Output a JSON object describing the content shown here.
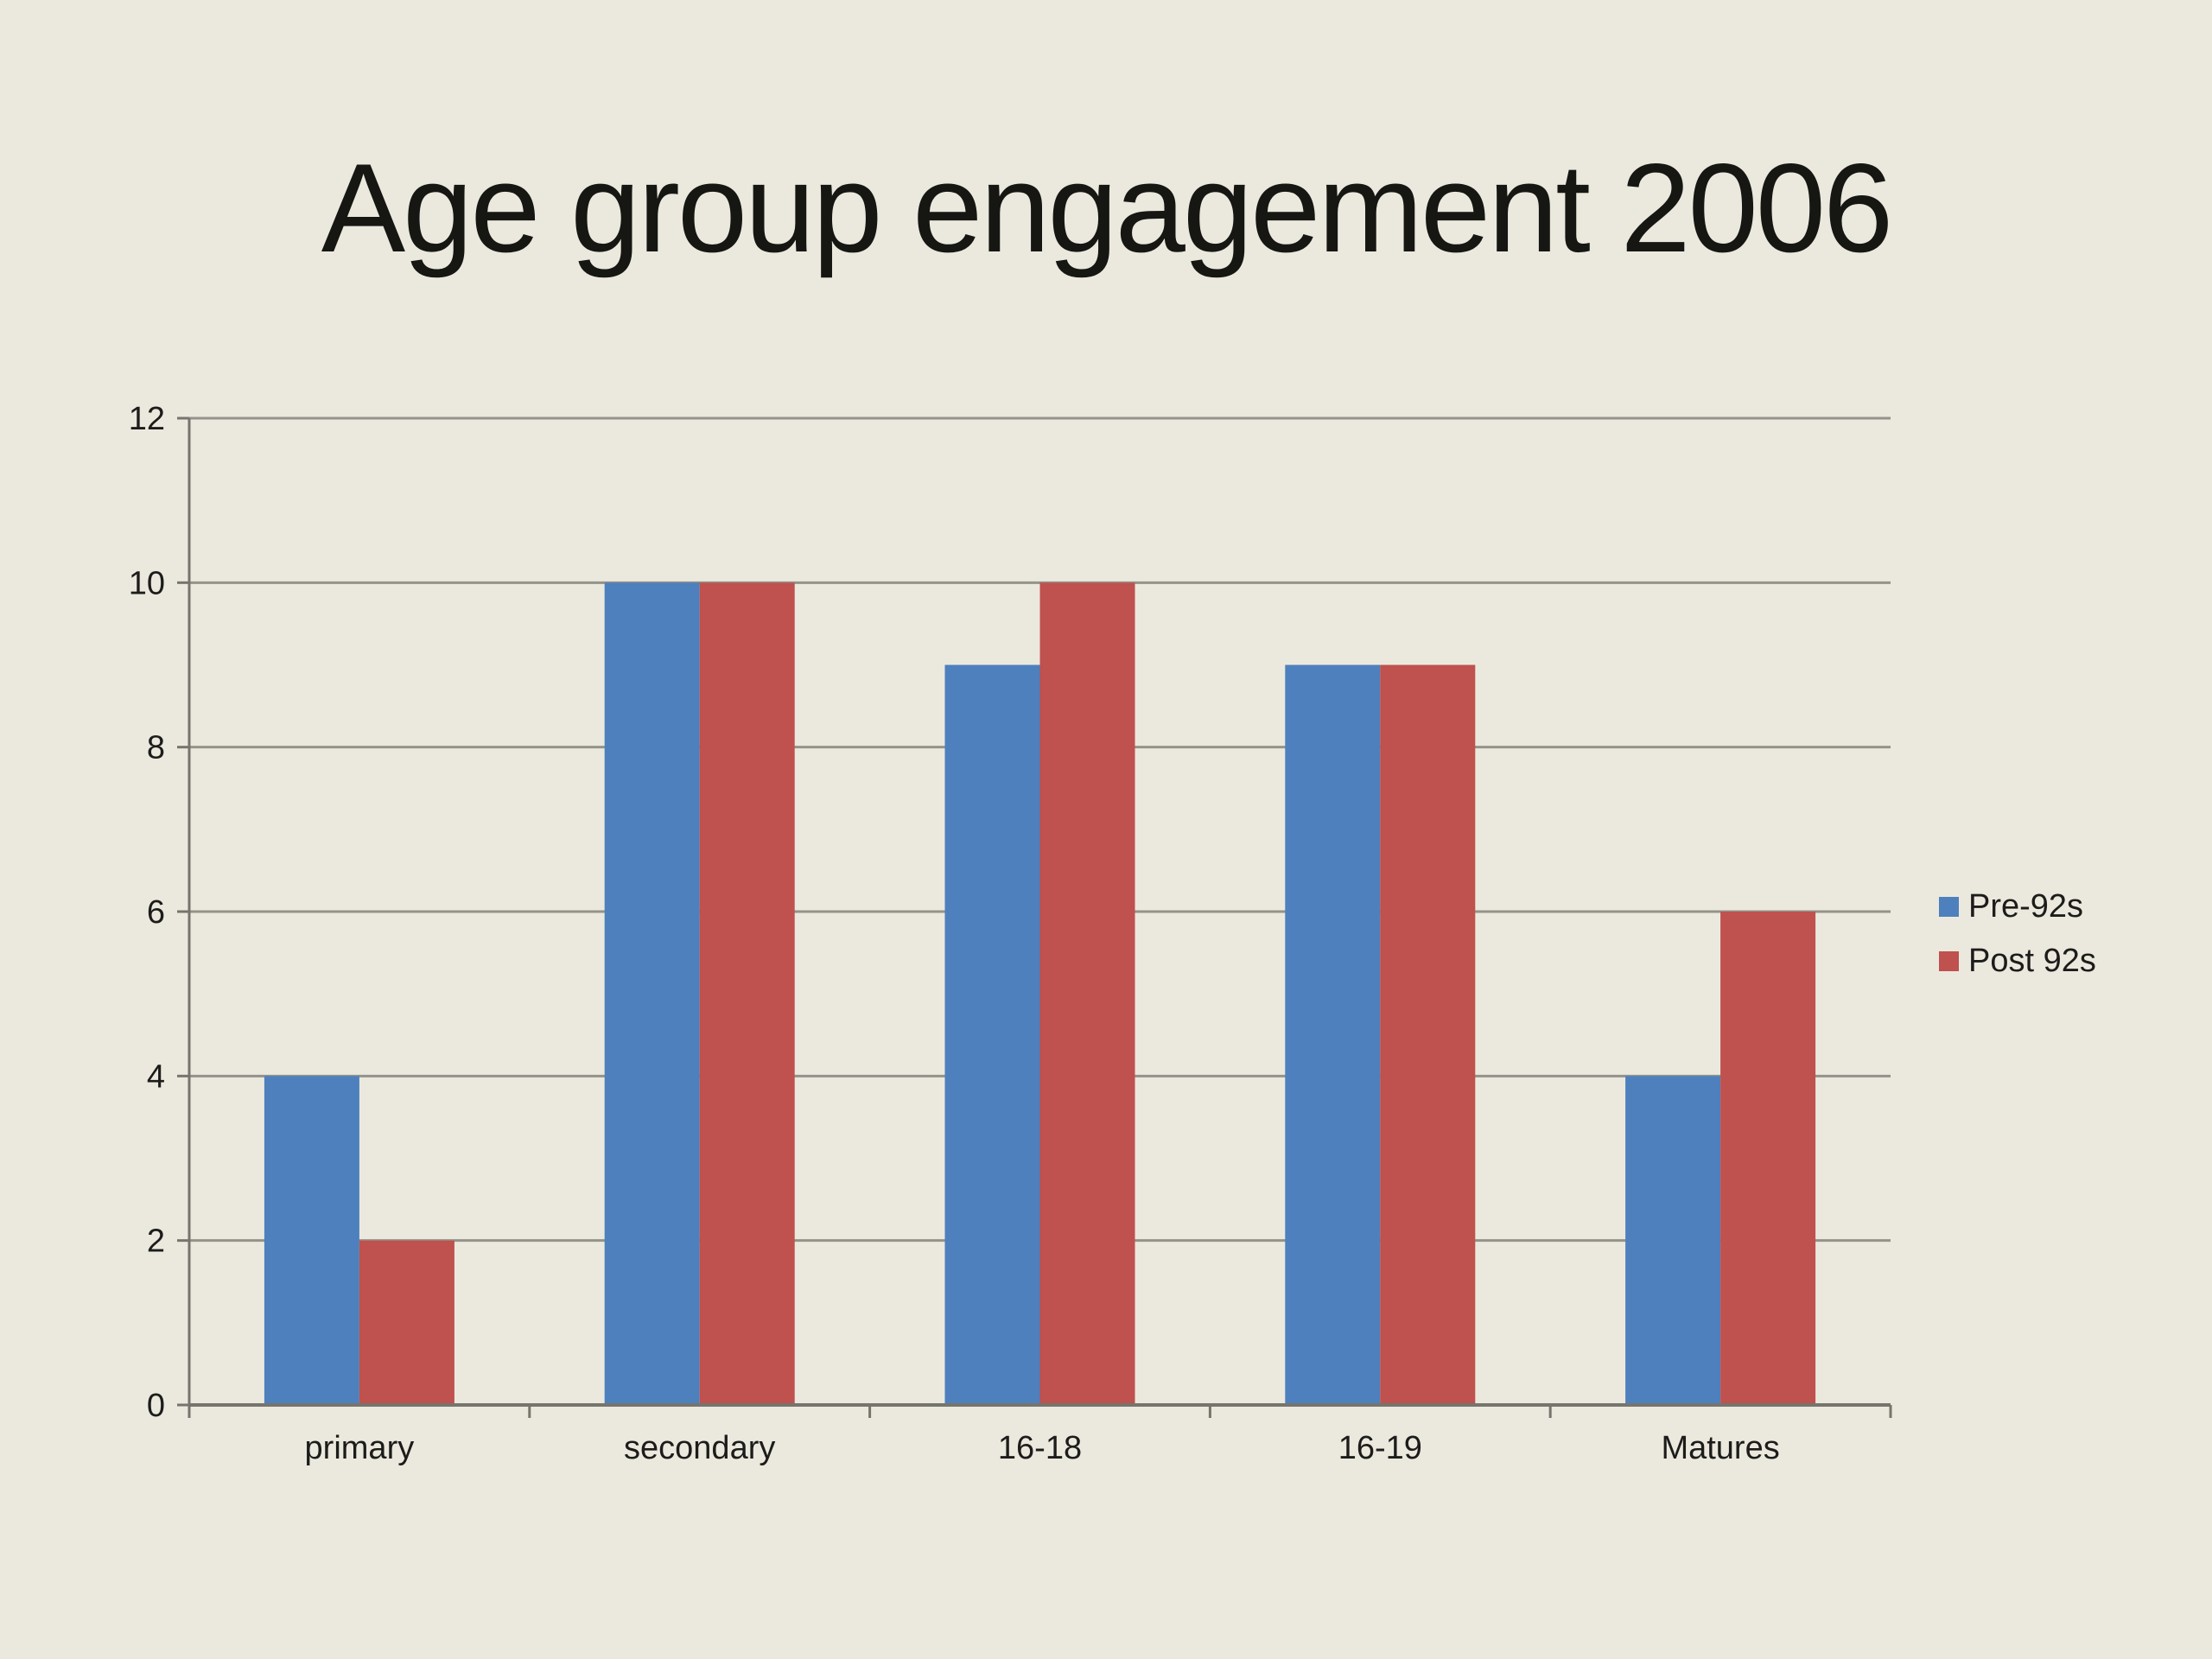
{
  "slide": {
    "background": "#EBE9DE"
  },
  "chart_data": {
    "type": "bar",
    "title": "Age group engagement 2006",
    "categories": [
      "primary",
      "secondary",
      "16-18",
      "16-19",
      "Matures"
    ],
    "series": [
      {
        "name": "Pre-92s",
        "color": "#4D80BD",
        "values": [
          4,
          10,
          9,
          9,
          4
        ]
      },
      {
        "name": "Post 92s",
        "color": "#BF514E",
        "values": [
          2,
          10,
          10,
          9,
          6
        ]
      }
    ],
    "xlabel": "",
    "ylabel": "",
    "ylim": [
      0,
      12
    ],
    "ytick_step": 2,
    "ytick_labels": [
      "0",
      "2",
      "4",
      "6",
      "8",
      "10",
      "12"
    ],
    "grid": true,
    "legend_position": "right",
    "colors": {
      "gridline": "#94938A",
      "axis": "#76756D",
      "text": "#1C1C1A"
    }
  }
}
